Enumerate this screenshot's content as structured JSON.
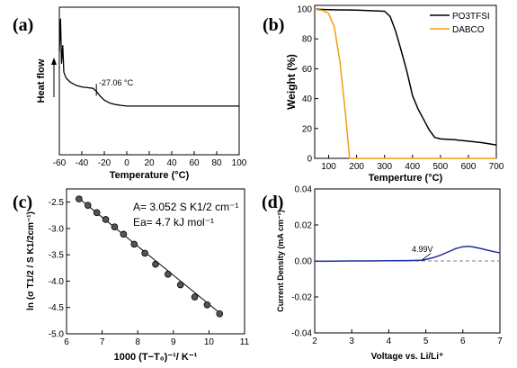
{
  "panels": [
    {
      "label": "(a)"
    },
    {
      "label": "(b)"
    },
    {
      "label": "(c)"
    },
    {
      "label": "(d)"
    }
  ],
  "chart_data": [
    {
      "id": "a",
      "type": "line",
      "xlabel": "Temperature (°C)",
      "ylabel": "Heat flow",
      "xlim": [
        -60,
        100
      ],
      "xticks": [
        -60,
        -40,
        -20,
        0,
        20,
        40,
        60,
        80,
        100
      ],
      "y_ticks_shown": false,
      "annotation": {
        "text": "-27.06 °C",
        "x": -27.06
      },
      "series": [
        {
          "color": "#000000",
          "x": [
            -60,
            -59,
            -58,
            -57,
            -56,
            -54,
            -50,
            -45,
            -40,
            -35,
            -30,
            -27,
            -24,
            -20,
            -15,
            -10,
            -5,
            0,
            20,
            40,
            60,
            80,
            100
          ],
          "y": [
            0.7,
            0.92,
            0.62,
            0.74,
            0.56,
            0.52,
            0.49,
            0.47,
            0.46,
            0.455,
            0.45,
            0.43,
            0.4,
            0.37,
            0.35,
            0.34,
            0.335,
            0.33,
            0.33,
            0.33,
            0.33,
            0.33,
            0.33
          ]
        }
      ]
    },
    {
      "id": "b",
      "type": "line",
      "xlabel": "Temperture (°C)",
      "ylabel": "Weight (%)",
      "xlim": [
        50,
        700
      ],
      "ylim": [
        0,
        100
      ],
      "xticks": [
        100,
        200,
        300,
        400,
        500,
        600,
        700
      ],
      "yticks": [
        0,
        20,
        40,
        60,
        80,
        100
      ],
      "legend_position": "top-right",
      "series": [
        {
          "name": "PO3TFSI",
          "color": "#000000",
          "x": [
            50,
            100,
            200,
            300,
            320,
            340,
            360,
            380,
            400,
            420,
            440,
            460,
            480,
            500,
            550,
            600,
            650,
            700
          ],
          "y": [
            99.8,
            99.5,
            99.2,
            98.5,
            95,
            85,
            72,
            58,
            42,
            33,
            26,
            19,
            14,
            13,
            12.5,
            11.5,
            10.5,
            9
          ]
        },
        {
          "name": "DABCO",
          "color": "#f39c12",
          "x": [
            50,
            80,
            100,
            120,
            140,
            160,
            175,
            700
          ],
          "y": [
            99.8,
            99,
            97,
            88,
            65,
            30,
            0,
            0
          ]
        }
      ]
    },
    {
      "id": "c",
      "type": "scatter",
      "xlabel": "1000 (T−T₀)⁻¹/ K⁻¹",
      "ylabel": "ln (σ T1/2 / S K1/2cm⁻¹)",
      "xlim": [
        6,
        11
      ],
      "ylim": [
        -5.0,
        -2.25
      ],
      "xticks": [
        6,
        7,
        8,
        9,
        10,
        11
      ],
      "yticks": [
        -5.0,
        -4.5,
        -4.0,
        -3.5,
        -3.0,
        -2.5
      ],
      "annotations": [
        "A= 3.052 S K1/2 cm⁻¹",
        "Ea= 4.7 kJ mol⁻¹"
      ],
      "fit_line": {
        "x": [
          6.35,
          10.35
        ],
        "y": [
          -2.43,
          -4.63
        ]
      },
      "points": {
        "x": [
          6.35,
          6.6,
          6.85,
          7.1,
          7.35,
          7.6,
          7.9,
          8.2,
          8.5,
          8.85,
          9.2,
          9.6,
          9.95,
          10.3
        ],
        "y": [
          -2.44,
          -2.56,
          -2.7,
          -2.83,
          -2.97,
          -3.11,
          -3.3,
          -3.47,
          -3.68,
          -3.87,
          -4.07,
          -4.3,
          -4.45,
          -4.62
        ]
      }
    },
    {
      "id": "d",
      "type": "line",
      "xlabel": "Voltage vs. Li/Li⁺",
      "ylabel": "Current Density (mA cm⁻²)",
      "xlim": [
        2,
        7
      ],
      "ylim": [
        -0.04,
        0.04
      ],
      "xticks": [
        2,
        3,
        4,
        5,
        6,
        7
      ],
      "yticks": [
        -0.04,
        -0.02,
        0.0,
        0.02,
        0.04
      ],
      "baseline": {
        "y": 0,
        "style": "dashed"
      },
      "annotation": {
        "text": "4.99V",
        "x": 4.99
      },
      "series": [
        {
          "color": "#1f2f9e",
          "x": [
            2,
            2.5,
            3,
            3.5,
            4,
            4.5,
            4.9,
            5.0,
            5.2,
            5.4,
            5.6,
            5.8,
            6.0,
            6.15,
            6.3,
            6.5,
            6.7,
            6.9,
            7.0
          ],
          "y": [
            -0.0002,
            -0.0001,
            0,
            0,
            0.0001,
            0.0002,
            0.0004,
            0.0008,
            0.0018,
            0.0032,
            0.005,
            0.0068,
            0.0079,
            0.0081,
            0.0077,
            0.0068,
            0.0058,
            0.0049,
            0.0045
          ]
        }
      ]
    }
  ]
}
